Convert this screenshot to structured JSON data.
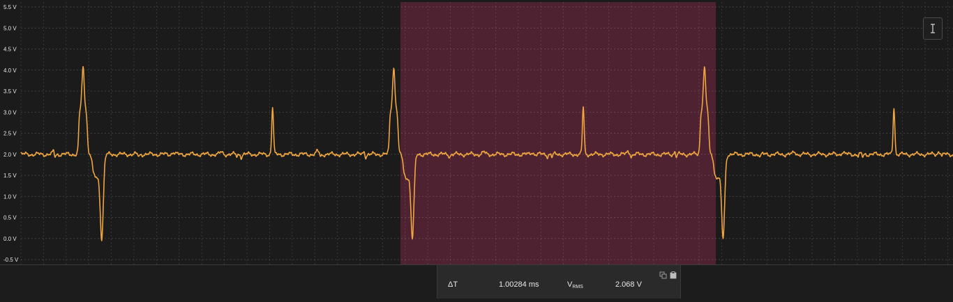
{
  "toolbar": {
    "cursor_tool_icon": "text-cursor-icon"
  },
  "measurement": {
    "delta_t_label": "ΔT",
    "delta_t_value": "1.00284 ms",
    "vrms_label_main": "V",
    "vrms_label_sub": "RMS",
    "vrms_value": "2.068 V",
    "icons": [
      "copy-icon",
      "clipboard-icon"
    ]
  },
  "colors": {
    "background": "#1b1b1b",
    "trace": "#f0a640",
    "selection": "#5a2436"
  },
  "chart_data": {
    "type": "line",
    "y_ticks": [
      "5.5 V",
      "5.0 V",
      "4.5 V",
      "4.0 V",
      "3.5 V",
      "3.0 V",
      "2.5 V",
      "2.0 V",
      "1.5 V",
      "1.0 V",
      "0.5 V",
      "0.0 V",
      "-0.5 V"
    ],
    "ylim": [
      -0.5,
      5.5
    ],
    "grid": true,
    "selection_ms": [
      1.0,
      2.00284
    ],
    "period_ms": 1.0,
    "xlim_ms": [
      0,
      3.0
    ],
    "baseline_v": 2.0,
    "pulses": [
      {
        "offset_ms": 0.2,
        "kind": "positive",
        "peak_v": 4.05
      },
      {
        "offset_ms": 0.26,
        "kind": "negative",
        "peak_v": 0.0
      },
      {
        "offset_ms": 0.81,
        "kind": "positive",
        "peak_v": 3.12
      }
    ]
  }
}
